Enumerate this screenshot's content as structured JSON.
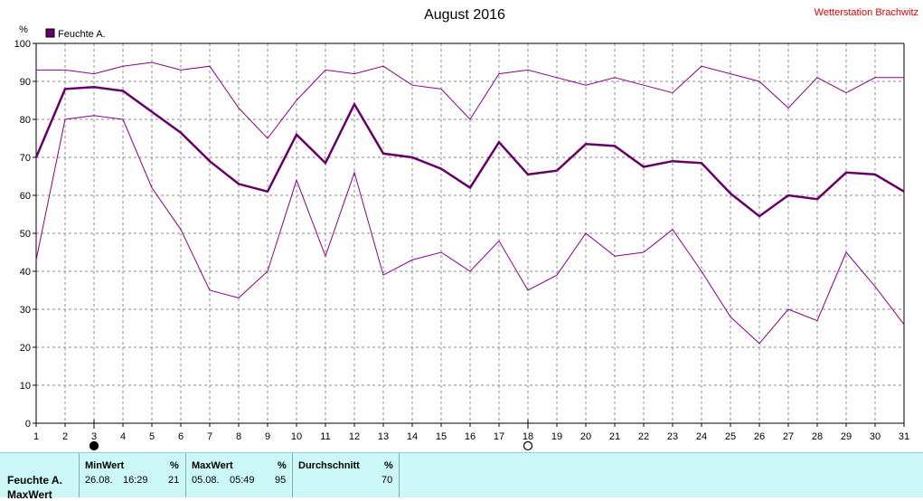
{
  "chart_data": {
    "type": "line",
    "title": "August 2016",
    "station": "Wetterstation Brachwitz",
    "y_unit": "%",
    "ylim": [
      0,
      100
    ],
    "yticks": [
      0,
      10,
      20,
      30,
      40,
      50,
      60,
      70,
      80,
      90,
      100
    ],
    "x": [
      1,
      2,
      3,
      4,
      5,
      6,
      7,
      8,
      9,
      10,
      11,
      12,
      13,
      14,
      15,
      16,
      17,
      18,
      19,
      20,
      21,
      22,
      23,
      24,
      25,
      26,
      27,
      28,
      29,
      30,
      31
    ],
    "grid": true,
    "legend": {
      "label": "Feuchte A.",
      "position": "top-left",
      "color": "#660066"
    },
    "series": [
      {
        "name": "Feuchte A.",
        "role": "max",
        "color": "#880088",
        "values": [
          93,
          93,
          92,
          94,
          95,
          93,
          94,
          83,
          75,
          85,
          93,
          92,
          94,
          89,
          88,
          80,
          92,
          93,
          91,
          89,
          91,
          89,
          87,
          94,
          92,
          90,
          83,
          91,
          87,
          91,
          91
        ]
      },
      {
        "name": "Feuchte A.",
        "role": "avg",
        "color": "#660066",
        "values": [
          70,
          88,
          88.5,
          87.5,
          82,
          76.5,
          69,
          63,
          61,
          76,
          68.5,
          84,
          71,
          70,
          67,
          62,
          74,
          65.5,
          66.5,
          73.5,
          73,
          67.5,
          69,
          68.5,
          60.5,
          54.5,
          60,
          59,
          66,
          65.5,
          61
        ]
      },
      {
        "name": "Feuchte A.",
        "role": "min",
        "color": "#880088",
        "values": [
          43,
          80,
          81,
          80,
          62,
          51,
          35,
          33,
          40,
          64,
          44,
          66,
          39,
          43,
          45,
          40,
          48,
          35,
          39,
          50,
          44,
          45,
          51,
          40,
          28,
          21,
          30,
          27,
          45,
          36,
          26
        ]
      }
    ],
    "markers": [
      {
        "day": 3,
        "symbol": "full-moon"
      },
      {
        "day": 18,
        "symbol": "new-moon"
      }
    ]
  },
  "stats": {
    "row_label": "Feuchte A.",
    "row_label_2": "MaxWert",
    "min": {
      "header": "MinWert",
      "unit": "%",
      "date": "26.08.",
      "time": "16:29",
      "value": "21"
    },
    "max": {
      "header": "MaxWert",
      "unit": "%",
      "date": "05.08.",
      "time": "05:49",
      "value": "95"
    },
    "avg": {
      "header": "Durchschnitt",
      "unit": "%",
      "value": "70"
    }
  }
}
